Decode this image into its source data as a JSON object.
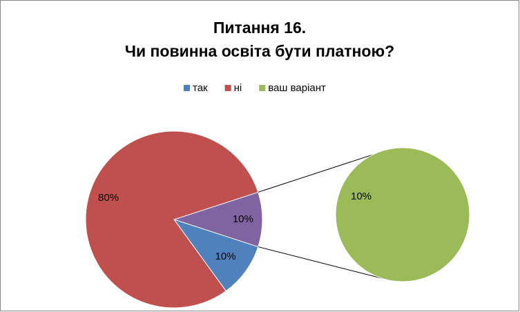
{
  "chart_data": {
    "type": "pie-of-pie",
    "title": [
      "Питання  16.",
      "Чи повинна освіта бути платною?"
    ],
    "categories": [
      "так",
      "ні",
      "ваш варіант"
    ],
    "values": [
      10,
      80,
      10
    ],
    "value_labels": [
      "10%",
      "80%",
      "10%"
    ],
    "colors": [
      "#4f81bd",
      "#c0504d",
      "#9bbb59"
    ],
    "other_color": "#8064a2",
    "legend": "top"
  }
}
